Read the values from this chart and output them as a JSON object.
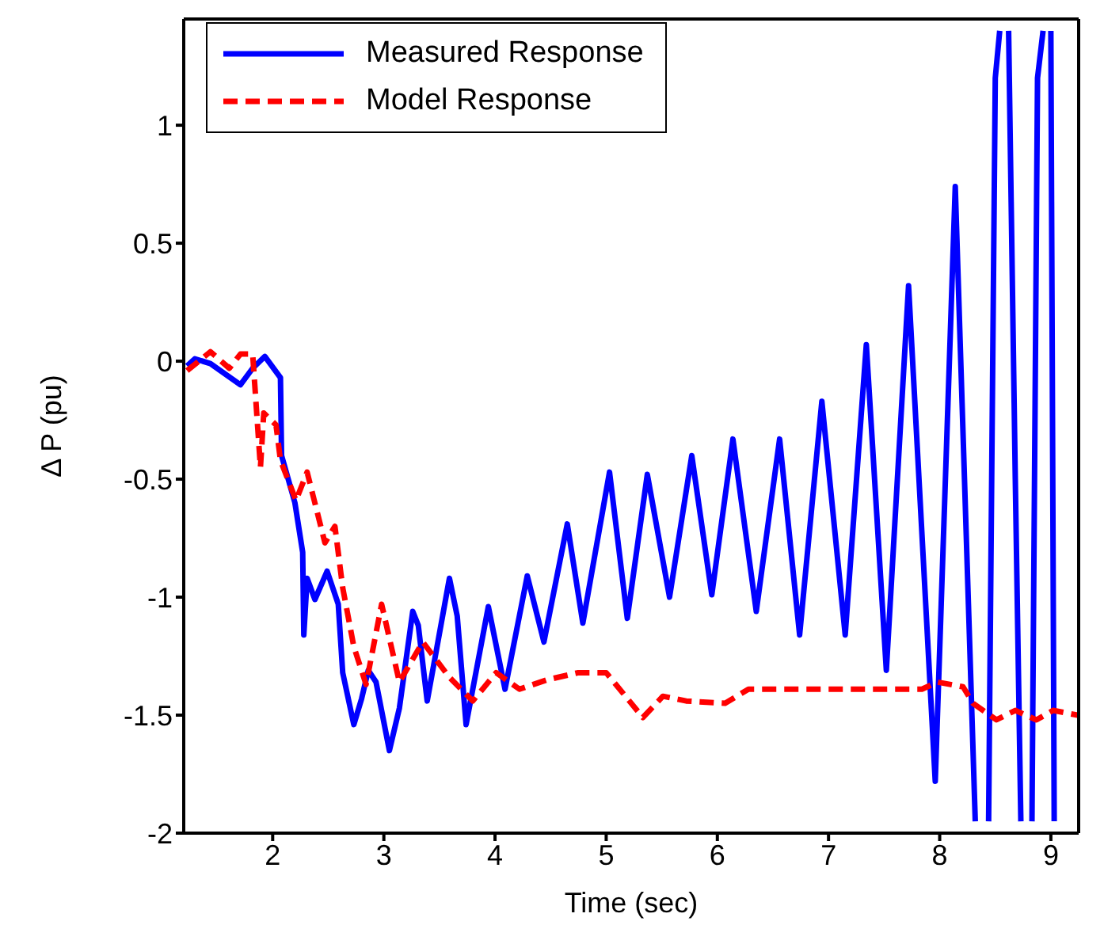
{
  "chart_data": {
    "type": "line",
    "xlabel": "Time (sec)",
    "ylabel": "Δ P (pu)",
    "xlim": [
      1.2,
      9.25
    ],
    "ylim": [
      -2,
      1.45
    ],
    "xticks": [
      2,
      3,
      4,
      5,
      6,
      7,
      8,
      9
    ],
    "yticks": [
      -2,
      -1.5,
      -1,
      -0.5,
      0,
      0.5,
      1
    ],
    "grid": false,
    "legend": "top left",
    "marker": "none",
    "series": [
      {
        "name": "Measured Response",
        "color": "#0000ff",
        "line_style": "solid",
        "x": [
          1.23,
          1.3,
          1.44,
          1.71,
          1.82,
          1.93,
          2.07,
          2.08,
          2.2,
          2.27,
          2.28,
          2.31,
          2.38,
          2.49,
          2.59,
          2.63,
          2.73,
          2.8,
          2.86,
          2.93,
          3.05,
          3.14,
          3.26,
          3.31,
          3.39,
          3.59,
          3.66,
          3.74,
          3.94,
          4.09,
          4.29,
          4.44,
          4.65,
          4.79,
          5.03,
          5.19,
          5.37,
          5.57,
          5.77,
          5.95,
          6.14,
          6.35,
          6.56,
          6.74,
          6.94,
          7.15,
          7.34,
          7.52,
          7.72,
          7.96,
          8.14,
          8.32,
          8.38,
          8.44,
          8.5,
          8.54,
          8.57,
          8.62,
          8.68,
          8.73,
          8.78,
          8.83,
          8.88,
          8.93,
          8.97,
          9.0,
          9.03
        ],
        "values": [
          -0.02,
          0.01,
          -0.01,
          -0.1,
          -0.03,
          0.02,
          -0.07,
          -0.4,
          -0.6,
          -0.81,
          -1.16,
          -0.92,
          -1.01,
          -0.89,
          -1.03,
          -1.32,
          -1.54,
          -1.43,
          -1.31,
          -1.36,
          -1.65,
          -1.47,
          -1.06,
          -1.12,
          -1.44,
          -0.92,
          -1.08,
          -1.54,
          -1.04,
          -1.39,
          -0.91,
          -1.19,
          -0.69,
          -1.11,
          -0.47,
          -1.09,
          -0.48,
          -1.0,
          -0.4,
          -0.99,
          -0.33,
          -1.06,
          -0.33,
          -1.16,
          -0.17,
          -1.16,
          0.07,
          -1.31,
          0.32,
          -1.78,
          0.74,
          -1.95,
          null,
          -1.95,
          1.2,
          1.4,
          null,
          1.4,
          -0.5,
          -1.95,
          null,
          -1.95,
          1.2,
          1.4,
          null,
          1.4,
          -1.95
        ]
      },
      {
        "name": "Model Response",
        "color": "#ff0000",
        "line_style": "dashed",
        "x": [
          1.23,
          1.44,
          1.61,
          1.71,
          1.82,
          1.89,
          1.92,
          2.03,
          2.07,
          2.21,
          2.31,
          2.47,
          2.56,
          2.63,
          2.73,
          2.84,
          2.98,
          3.14,
          3.35,
          3.59,
          3.8,
          4.01,
          4.22,
          4.47,
          4.75,
          5.0,
          5.33,
          5.51,
          5.72,
          6.07,
          6.28,
          6.8,
          7.84,
          7.98,
          8.21,
          8.3,
          8.51,
          8.68,
          8.87,
          9.02,
          9.24
        ],
        "values": [
          -0.04,
          0.04,
          -0.03,
          0.03,
          0.03,
          -0.45,
          -0.22,
          -0.27,
          -0.42,
          -0.59,
          -0.47,
          -0.77,
          -0.7,
          -0.96,
          -1.21,
          -1.37,
          -1.03,
          -1.36,
          -1.19,
          -1.34,
          -1.44,
          -1.32,
          -1.39,
          -1.35,
          -1.32,
          -1.32,
          -1.51,
          -1.42,
          -1.44,
          -1.45,
          -1.39,
          -1.39,
          -1.39,
          -1.36,
          -1.38,
          -1.45,
          -1.52,
          -1.48,
          -1.52,
          -1.48,
          -1.5
        ]
      }
    ]
  }
}
